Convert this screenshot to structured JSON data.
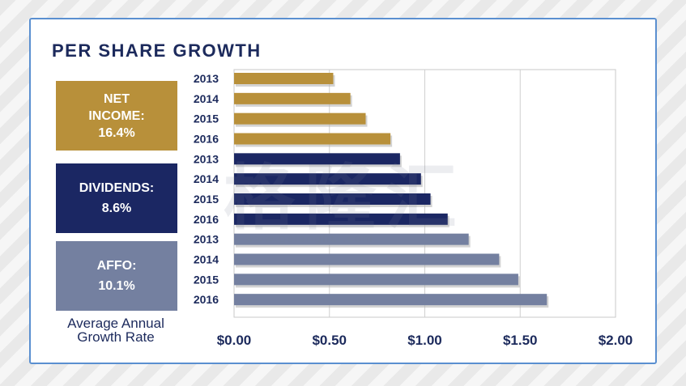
{
  "title": "PER SHARE GROWTH",
  "groups": [
    {
      "name": "NET INCOME",
      "label_lines": [
        "NET",
        "INCOME:",
        "16.4%"
      ],
      "color": "#b8903a"
    },
    {
      "name": "DIVIDENDS",
      "label_lines": [
        "DIVIDENDS:",
        "8.6%"
      ],
      "color": "#1b2763"
    },
    {
      "name": "AFFO",
      "label_lines": [
        "AFFO:",
        "10.1%"
      ],
      "color": "#7480a0"
    }
  ],
  "side_caption_lines": [
    "Average Annual",
    "Growth Rate"
  ],
  "watermark": {
    "main": "格隆汇",
    "sub": "www.gelonghui.com"
  },
  "chart_data": {
    "type": "bar",
    "orientation": "horizontal",
    "title": "PER SHARE GROWTH",
    "xlabel": "",
    "ylabel": "",
    "xlim": [
      0,
      2
    ],
    "x_ticks": [
      0,
      0.5,
      1.0,
      1.5,
      2.0
    ],
    "x_tick_labels": [
      "$0.00",
      "$0.50",
      "$1.00",
      "$1.50",
      "$2.00"
    ],
    "grid": "vertical",
    "categories": [
      "2013",
      "2014",
      "2015",
      "2016"
    ],
    "series": [
      {
        "name": "Net Income",
        "growth_rate": "16.4%",
        "color": "#b8903a",
        "values": [
          0.52,
          0.61,
          0.69,
          0.82
        ]
      },
      {
        "name": "Dividends",
        "growth_rate": "8.6%",
        "color": "#1b2763",
        "values": [
          0.87,
          0.98,
          1.03,
          1.12
        ]
      },
      {
        "name": "AFFO",
        "growth_rate": "10.1%",
        "color": "#7480a0",
        "values": [
          1.23,
          1.39,
          1.49,
          1.64
        ]
      }
    ]
  }
}
